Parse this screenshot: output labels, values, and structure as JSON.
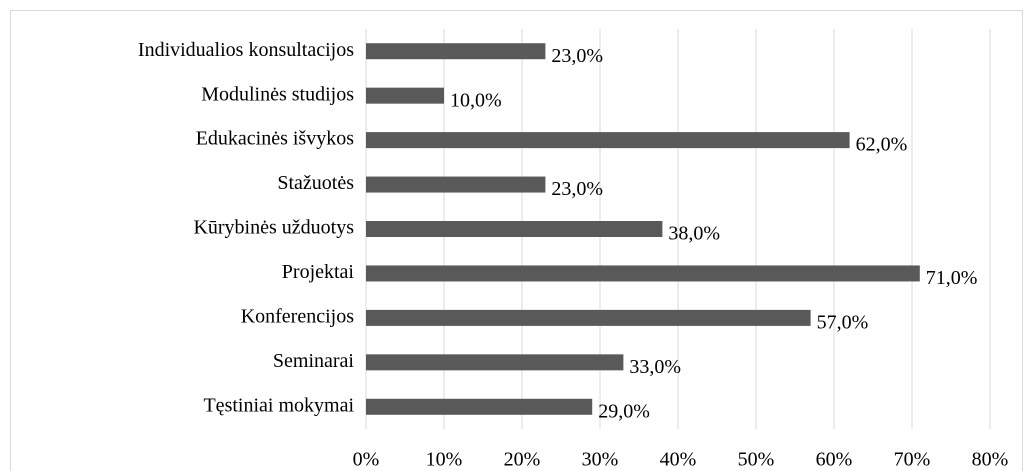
{
  "chart_data": {
    "type": "bar",
    "orientation": "horizontal",
    "categories": [
      "Individualios konsultacijos",
      "Modulinės studijos",
      "Edukacinės išvykos",
      "Stažuotės",
      "Kūrybinės užduotys",
      "Projektai",
      "Konferencijos",
      "Seminarai",
      "Tęstiniai mokymai"
    ],
    "values": [
      23,
      10,
      62,
      23,
      38,
      71,
      57,
      33,
      29
    ],
    "value_labels": [
      "23,0%",
      "10,0%",
      "62,0%",
      "23,0%",
      "38,0%",
      "71,0%",
      "57,0%",
      "33,0%",
      "29,0%"
    ],
    "color": "#595959",
    "xlim": [
      0,
      80
    ],
    "xticks": [
      {
        "value": 0,
        "label": "0%"
      },
      {
        "value": 10,
        "label": "10%"
      },
      {
        "value": 20,
        "label": "20%"
      },
      {
        "value": 30,
        "label": "30%"
      },
      {
        "value": 40,
        "label": "40%"
      },
      {
        "value": 50,
        "label": "50%"
      },
      {
        "value": 60,
        "label": "60%"
      },
      {
        "value": 70,
        "label": "70%"
      },
      {
        "value": 80,
        "label": "80%"
      }
    ],
    "grid": true
  }
}
